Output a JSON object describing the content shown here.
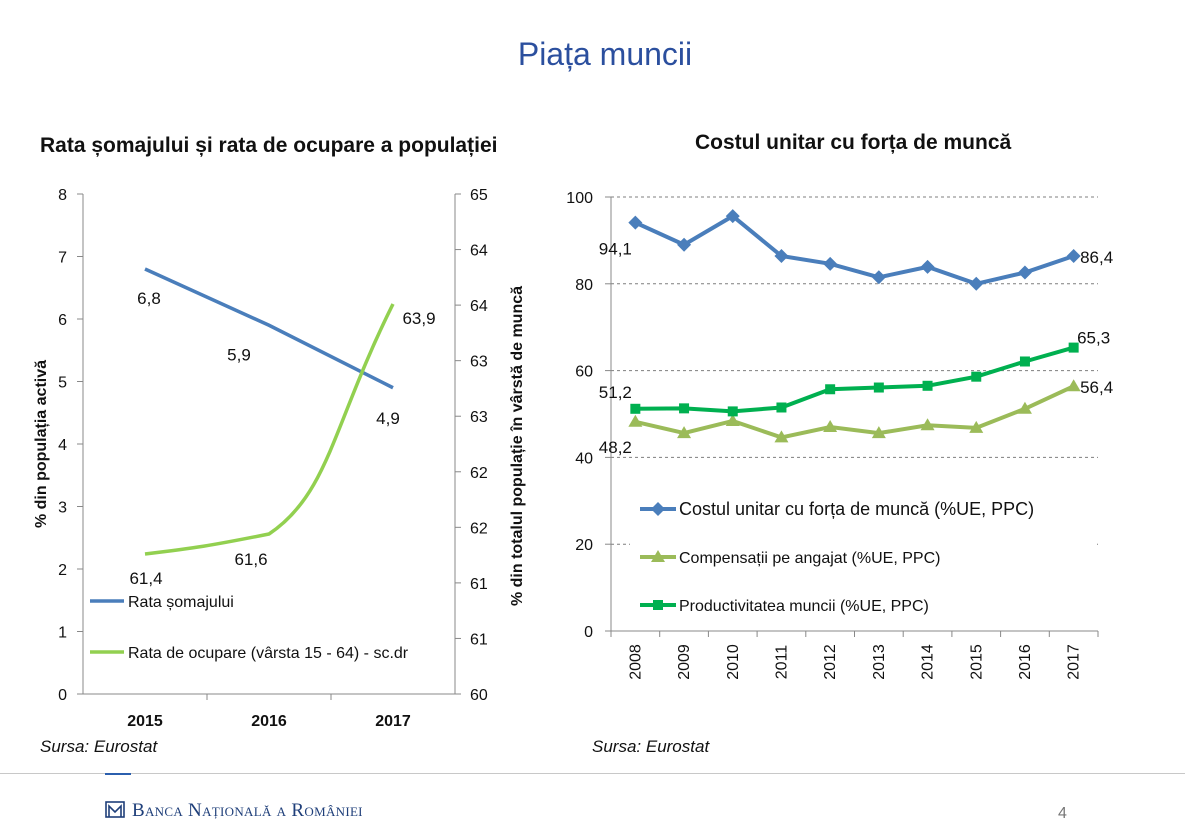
{
  "page": {
    "title": "Piața muncii",
    "brand": "Banca Națională a României",
    "page_number": "4"
  },
  "chart_data": [
    {
      "type": "line",
      "title": "Rata șomajului și rata de ocupare a populației",
      "categories": [
        "2015",
        "2016",
        "2017"
      ],
      "ylabel": "% din populația activă",
      "y2label": "% din totalul populație în  vârstă de muncă",
      "ylim": [
        0,
        8
      ],
      "yticks": [
        "0",
        "1",
        "2",
        "3",
        "4",
        "5",
        "6",
        "7",
        "8"
      ],
      "y2lim": [
        60,
        65
      ],
      "y2ticks": [
        "60",
        "61",
        "61",
        "62",
        "62",
        "63",
        "63",
        "64",
        "64",
        "65"
      ],
      "series": [
        {
          "name": "Rata șomajului",
          "axis": "left",
          "values": [
            6.8,
            5.9,
            4.9
          ],
          "labels": [
            "6,8",
            "5,9",
            "4,9"
          ],
          "color": "#4A7EBB"
        },
        {
          "name": "Rata de ocupare (vârsta 15 - 64) - sc.dr",
          "axis": "right",
          "values": [
            61.4,
            61.6,
            63.9
          ],
          "labels": [
            "61,4",
            "61,6",
            "63,9"
          ],
          "color": "#92D050"
        }
      ],
      "legend_position": "bottom-left",
      "grid": false,
      "source": "Sursa: Eurostat"
    },
    {
      "type": "line",
      "title": "Costul unitar cu forța de muncă",
      "categories": [
        "2008",
        "2009",
        "2010",
        "2011",
        "2012",
        "2013",
        "2014",
        "2015",
        "2016",
        "2017"
      ],
      "ylim": [
        0,
        100
      ],
      "yticks": [
        "0",
        "20",
        "40",
        "60",
        "80",
        "100"
      ],
      "series": [
        {
          "name": "Costul unitar cu forța de muncă (%UE, PPC)",
          "marker": "diamond",
          "color": "#4A7EBB",
          "values": [
            94.1,
            89,
            95.6,
            86.4,
            84.6,
            81.5,
            83.9,
            80,
            82.6,
            86.4
          ]
        },
        {
          "name": "Compensații pe angajat (%UE, PPC)",
          "marker": "triangle",
          "color": "#9BBB59",
          "values": [
            48.2,
            45.6,
            48.4,
            44.6,
            47,
            45.6,
            47.4,
            46.8,
            51.2,
            56.4
          ]
        },
        {
          "name": "Productivitatea muncii (%UE, PPC)",
          "marker": "square",
          "color": "#00B050",
          "values": [
            51.2,
            51.3,
            50.6,
            51.5,
            55.7,
            56.1,
            56.5,
            58.6,
            62.1,
            65.3
          ]
        }
      ],
      "data_labels": [
        {
          "series": 0,
          "index": 0,
          "text": "94,1"
        },
        {
          "series": 0,
          "index": 9,
          "text": "86,4"
        },
        {
          "series": 1,
          "index": 0,
          "text": "48,2"
        },
        {
          "series": 1,
          "index": 9,
          "text": "56,4"
        },
        {
          "series": 2,
          "index": 0,
          "text": "51,2"
        },
        {
          "series": 2,
          "index": 9,
          "text": "65,3"
        }
      ],
      "legend_position": "center",
      "grid": true,
      "source": "Sursa: Eurostat"
    }
  ]
}
